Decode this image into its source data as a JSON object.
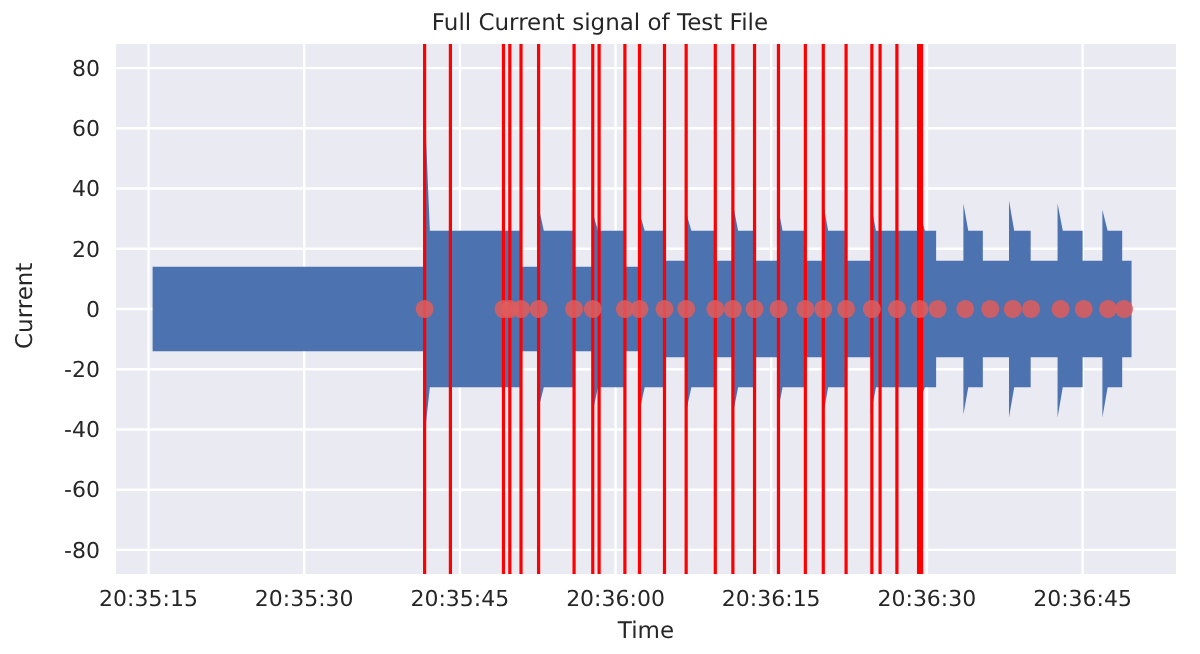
{
  "chart_data": {
    "type": "line",
    "title": "Full Current signal of Test File",
    "xlabel": "Time",
    "ylabel": "Current",
    "xlim": [
      20.58663,
      20.615
    ],
    "xticks": [
      {
        "value": 20.5875,
        "label": "20:35:15"
      },
      {
        "value": 20.591667,
        "label": "20:35:30"
      },
      {
        "value": 20.595833,
        "label": "20:35:45"
      },
      {
        "value": 20.6,
        "label": "20:36:00"
      },
      {
        "value": 20.604167,
        "label": "20:36:15"
      },
      {
        "value": 20.608333,
        "label": "20:36:30"
      },
      {
        "value": 20.6125,
        "label": "20:36:45"
      }
    ],
    "ylim": [
      -88,
      88
    ],
    "yticks": [
      -80,
      -60,
      -40,
      -20,
      0,
      20,
      40,
      60,
      80
    ],
    "grid": true,
    "legend": false,
    "series": [
      {
        "color": "#4c72b0",
        "x": [
          20.58761,
          20.59489,
          20.59489,
          20.59503,
          20.59747,
          20.59747,
          20.59794,
          20.59794,
          20.59808,
          20.59889,
          20.59889,
          20.59939,
          20.59939,
          20.59953,
          20.60025,
          20.60025,
          20.60064,
          20.60064,
          20.60078,
          20.60133,
          20.60133,
          20.60189,
          20.60189,
          20.60203,
          20.60267,
          20.60267,
          20.60314,
          20.60314,
          20.60328,
          20.60372,
          20.60372,
          20.60433,
          20.60433,
          20.60447,
          20.60506,
          20.60506,
          20.60556,
          20.60556,
          20.60569,
          20.60614,
          20.60614,
          20.60683,
          20.60683,
          20.60697,
          20.60814,
          20.60814,
          20.60828,
          20.60858,
          20.60858,
          20.60931,
          20.60931,
          20.60944,
          20.60983,
          20.60983,
          20.61053,
          20.61053,
          20.61067,
          20.61111,
          20.61111,
          20.61183,
          20.61183,
          20.61197,
          20.6125,
          20.6125,
          20.61303,
          20.61303,
          20.61317,
          20.61356,
          20.61356,
          20.61381
        ],
        "values": [
          null,
          null,
          null,
          null,
          null,
          null,
          null,
          null,
          null,
          null,
          null,
          null,
          null,
          null,
          null,
          null,
          null,
          null,
          null,
          null,
          null,
          null,
          null,
          null,
          null,
          null,
          null,
          null,
          null,
          null,
          null,
          null,
          null,
          null,
          null,
          null,
          null,
          null,
          null,
          null,
          null,
          null,
          null,
          null,
          null,
          null,
          null,
          null,
          null,
          null,
          null,
          null,
          null,
          null,
          null,
          null,
          null,
          null,
          null,
          null,
          null,
          null,
          null,
          null,
          null,
          null,
          null,
          null,
          null,
          null
        ],
        "lower": [
          -14,
          -14,
          -42,
          -26,
          -26,
          -14,
          -14,
          -33,
          -26,
          -26,
          -14,
          -14,
          -34,
          -26,
          -26,
          -14,
          -14,
          -34,
          -26,
          -26,
          -16,
          -16,
          -34,
          -26,
          -26,
          -16,
          -16,
          -35,
          -26,
          -26,
          -16,
          -16,
          -35,
          -26,
          -26,
          -16,
          -16,
          -35,
          -26,
          -26,
          -16,
          -16,
          -35,
          -26,
          -26,
          -30,
          -26,
          -26,
          -16,
          -16,
          -35,
          -26,
          -26,
          -16,
          -16,
          -36,
          -26,
          -26,
          -16,
          -16,
          -36,
          -26,
          -26,
          -16,
          -16,
          -36,
          -26,
          -26,
          -16,
          -16
        ],
        "upper": [
          14,
          14,
          68,
          26,
          26,
          14,
          14,
          34,
          26,
          26,
          14,
          14,
          32,
          26,
          26,
          14,
          14,
          32,
          26,
          26,
          16,
          16,
          32,
          26,
          26,
          16,
          16,
          35,
          26,
          26,
          16,
          16,
          35,
          26,
          26,
          16,
          16,
          35,
          26,
          26,
          16,
          16,
          35,
          26,
          26,
          32,
          26,
          26,
          16,
          16,
          35,
          26,
          26,
          16,
          16,
          36,
          26,
          26,
          16,
          16,
          35,
          26,
          26,
          16,
          16,
          33,
          26,
          26,
          16,
          16
        ]
      },
      {
        "type": "scatter",
        "color": "#e05c5c",
        "marker": "circle",
        "x": [
          20.59489,
          20.597,
          20.59717,
          20.59747,
          20.59794,
          20.59889,
          20.59939,
          20.60025,
          20.60064,
          20.60131,
          20.60189,
          20.60267,
          20.60314,
          20.60372,
          20.60436,
          20.60508,
          20.60556,
          20.60617,
          20.60686,
          20.60753,
          20.60814,
          20.60862,
          20.60936,
          20.61003,
          20.61063,
          20.61112,
          20.61191,
          20.61253,
          20.61318,
          20.61361
        ],
        "values": [
          0,
          0,
          0,
          0,
          0,
          0,
          0,
          0,
          0,
          0,
          0,
          0,
          0,
          0,
          0,
          0,
          0,
          0,
          0,
          0,
          0,
          0,
          0,
          0,
          0,
          0,
          0,
          0,
          0,
          0
        ]
      }
    ],
    "ref_lines": [
      {
        "axis": "x",
        "value": 20.59489,
        "color": "#ff0000"
      },
      {
        "axis": "x",
        "value": 20.59558,
        "color": "#ff0000"
      },
      {
        "axis": "x",
        "value": 20.597,
        "color": "#ff0000"
      },
      {
        "axis": "x",
        "value": 20.59717,
        "color": "#ff0000"
      },
      {
        "axis": "x",
        "value": 20.59747,
        "color": "#ff0000"
      },
      {
        "axis": "x",
        "value": 20.59794,
        "color": "#ff0000"
      },
      {
        "axis": "x",
        "value": 20.59889,
        "color": "#ff0000"
      },
      {
        "axis": "x",
        "value": 20.59939,
        "color": "#ff0000"
      },
      {
        "axis": "x",
        "value": 20.59956,
        "color": "#ff0000"
      },
      {
        "axis": "x",
        "value": 20.60025,
        "color": "#ff0000"
      },
      {
        "axis": "x",
        "value": 20.60064,
        "color": "#ff0000"
      },
      {
        "axis": "x",
        "value": 20.60131,
        "color": "#ff0000"
      },
      {
        "axis": "x",
        "value": 20.60189,
        "color": "#ff0000"
      },
      {
        "axis": "x",
        "value": 20.60267,
        "color": "#ff0000"
      },
      {
        "axis": "x",
        "value": 20.60314,
        "color": "#ff0000"
      },
      {
        "axis": "x",
        "value": 20.60372,
        "color": "#ff0000"
      },
      {
        "axis": "x",
        "value": 20.60436,
        "color": "#ff0000"
      },
      {
        "axis": "x",
        "value": 20.60508,
        "color": "#ff0000"
      },
      {
        "axis": "x",
        "value": 20.60556,
        "color": "#ff0000"
      },
      {
        "axis": "x",
        "value": 20.60617,
        "color": "#ff0000"
      },
      {
        "axis": "x",
        "value": 20.60686,
        "color": "#ff0000"
      },
      {
        "axis": "x",
        "value": 20.60708,
        "color": "#ff0000"
      },
      {
        "axis": "x",
        "value": 20.60753,
        "color": "#ff0000"
      },
      {
        "axis": "x",
        "value": 20.60811,
        "color": "#ff0000"
      },
      {
        "axis": "x",
        "value": 20.60819,
        "color": "#ff0000"
      }
    ]
  }
}
